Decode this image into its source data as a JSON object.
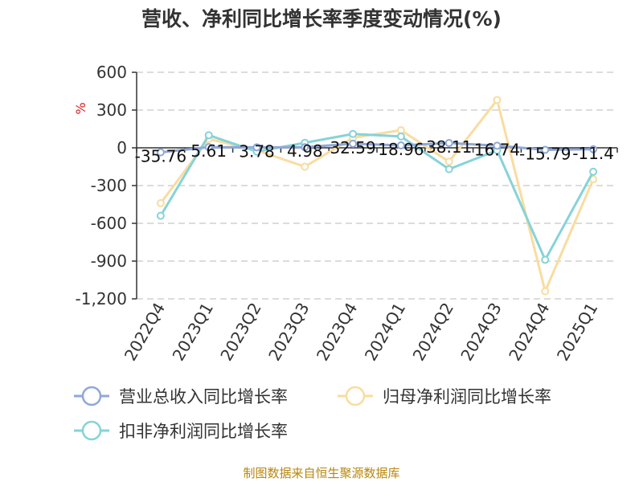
{
  "chart_data": {
    "type": "line",
    "title": "营收、净利同比增长率季度变动情况(%)",
    "ylabel": "%",
    "ylim": [
      -1200,
      600
    ],
    "yticks": [
      600,
      300,
      0,
      -300,
      -600,
      -900,
      -1200
    ],
    "ytick_labels": [
      "600",
      "300",
      "0",
      "-300",
      "-600",
      "-900",
      "-1,200"
    ],
    "categories": [
      "2022Q4",
      "2023Q1",
      "2023Q2",
      "2023Q3",
      "2023Q4",
      "2024Q1",
      "2024Q2",
      "2024Q3",
      "2024Q4",
      "2025Q1"
    ],
    "grid": true,
    "legend_position": "bottom",
    "series": [
      {
        "name": "营业总收入同比增长率",
        "color": "#8fa8d8",
        "values": [
          -35.76,
          5.61,
          3.78,
          4.98,
          32.59,
          18.96,
          38.11,
          16.74,
          -15.79,
          -11.4
        ],
        "labels": [
          "-35.76",
          "5.61",
          "3.78",
          "4.98",
          "32.59",
          "18.96",
          "38.11",
          "16.74",
          "-15.79",
          "-11.4"
        ]
      },
      {
        "name": "归母净利润同比增长率",
        "color": "#f9dca0",
        "values": [
          -440,
          70,
          -20,
          -150,
          80,
          140,
          -110,
          380,
          -1140,
          -250
        ]
      },
      {
        "name": "扣非净利润同比增长率",
        "color": "#86d3d8",
        "values": [
          -540,
          100,
          -30,
          40,
          110,
          90,
          -170,
          -20,
          -890,
          -190
        ]
      }
    ]
  },
  "source": "制图数据来自恒生聚源数据库"
}
